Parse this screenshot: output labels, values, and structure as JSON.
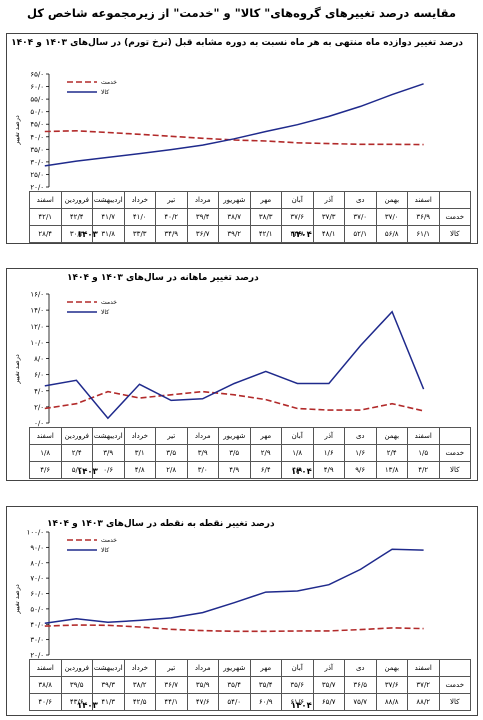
{
  "page_title": "مقایسه درصد تغییرهای گروه‌های\" کالا\" و \"خدمت\" از زیرمجموعه شاخص کل",
  "labels": {
    "khedmat": "خدمت",
    "kala": "کالا",
    "year_1403": "۱۴۰۳",
    "year_1404": "۱۴۰۴",
    "y_axis_title": "درصد تغییر"
  },
  "months": [
    "اسفند",
    "فروردین",
    "اردیبهشت",
    "خرداد",
    "تیر",
    "مرداد",
    "شهریور",
    "مهر",
    "آبان",
    "آذر",
    "دی",
    "بهمن",
    "اسفند"
  ],
  "colors": {
    "khedmat": "#b22a2a",
    "kala": "#1f2a8c"
  },
  "chart_data": [
    {
      "type": "line",
      "title": "درصد تغییر دوازده ماه منتهی به هر ماه نسبت به دوره مشابه قبل (نرخ تورم) در سال‌های ۱۴۰۳ و ۱۴۰۴",
      "ylabel": "درصد تغییر",
      "ylim": [
        20,
        65
      ],
      "yticks": [
        20,
        25,
        30,
        35,
        40,
        45,
        50,
        55,
        60,
        65
      ],
      "ytick_labels": [
        "۲۰/۰",
        "۲۵/۰",
        "۳۰/۰",
        "۳۵/۰",
        "۴۰/۰",
        "۴۵/۰",
        "۵۰/۰",
        "۵۵/۰",
        "۶۰/۰",
        "۶۵/۰"
      ],
      "x": [
        "اسفند",
        "فروردین",
        "اردیبهشت",
        "خرداد",
        "تیر",
        "مرداد",
        "شهریور",
        "مهر",
        "آبان",
        "آذر",
        "دی",
        "بهمن",
        "اسفند"
      ],
      "series": [
        {
          "name": "خدمت",
          "values": [
            42.1,
            42.4,
            41.7,
            41.0,
            40.2,
            39.4,
            38.7,
            38.3,
            37.6,
            37.3,
            37.0,
            37.0,
            36.9
          ],
          "labels": [
            "۴۲/۱",
            "۴۲/۴",
            "۴۱/۷",
            "۴۱/۰",
            "۴۰/۲",
            "۳۹/۴",
            "۳۸/۷",
            "۳۸/۳",
            "۳۷/۶",
            "۳۷/۳",
            "۳۷/۰",
            "۳۷/۰",
            "۳۶/۹"
          ]
        },
        {
          "name": "کالا",
          "values": [
            28.4,
            30.3,
            31.8,
            33.3,
            34.9,
            36.7,
            39.2,
            42.1,
            44.8,
            48.1,
            52.1,
            56.8,
            61.1
          ],
          "labels": [
            "۲۸/۴",
            "۳۰/۳",
            "۳۱/۸",
            "۳۳/۳",
            "۳۴/۹",
            "۳۶/۷",
            "۳۹/۲",
            "۴۲/۱",
            "۴۴/۸",
            "۴۸/۱",
            "۵۲/۱",
            "۵۶/۸",
            "۶۱/۱"
          ]
        }
      ]
    },
    {
      "type": "line",
      "title": "درصد تغییر ماهانه در سال‌های ۱۴۰۳ و ۱۴۰۴",
      "ylabel": "درصد تغییر",
      "ylim": [
        0,
        16
      ],
      "yticks": [
        0,
        2,
        4,
        6,
        8,
        10,
        12,
        14,
        16
      ],
      "ytick_labels": [
        "۰/۰",
        "۲/۰",
        "۴/۰",
        "۶/۰",
        "۸/۰",
        "۱۰/۰",
        "۱۲/۰",
        "۱۴/۰",
        "۱۶/۰"
      ],
      "x": [
        "اسفند",
        "فروردین",
        "اردیبهشت",
        "خرداد",
        "تیر",
        "مرداد",
        "شهریور",
        "مهر",
        "آبان",
        "آذر",
        "دی",
        "بهمن",
        "اسفند"
      ],
      "series": [
        {
          "name": "خدمت",
          "values": [
            1.8,
            2.4,
            3.9,
            3.1,
            3.5,
            3.9,
            3.5,
            2.9,
            1.8,
            1.6,
            1.6,
            2.4,
            1.5
          ],
          "labels": [
            "۱/۸",
            "۲/۴",
            "۳/۹",
            "۳/۱",
            "۳/۵",
            "۳/۹",
            "۳/۵",
            "۲/۹",
            "۱/۸",
            "۱/۶",
            "۱/۶",
            "۲/۴",
            "۱/۵"
          ]
        },
        {
          "name": "کالا",
          "values": [
            4.6,
            5.3,
            0.6,
            4.8,
            2.8,
            3.0,
            4.9,
            6.4,
            4.9,
            4.9,
            9.6,
            13.8,
            4.2
          ],
          "labels": [
            "۴/۶",
            "۵/۳",
            "۰/۶",
            "۴/۸",
            "۲/۸",
            "۳/۰",
            "۴/۹",
            "۶/۴",
            "۴/۹",
            "۴/۹",
            "۹/۶",
            "۱۳/۸",
            "۴/۲"
          ]
        }
      ]
    },
    {
      "type": "line",
      "title": "درصد تغییر نقطه به نقطه در سال‌های ۱۴۰۳ و ۱۴۰۴",
      "ylabel": "درصد تغییر",
      "ylim": [
        20,
        100
      ],
      "yticks": [
        20,
        30,
        40,
        50,
        60,
        70,
        80,
        90,
        100
      ],
      "ytick_labels": [
        "۲۰/۰",
        "۳۰/۰",
        "۴۰/۰",
        "۵۰/۰",
        "۶۰/۰",
        "۷۰/۰",
        "۸۰/۰",
        "۹۰/۰",
        "۱۰۰/۰"
      ],
      "x": [
        "اسفند",
        "فروردین",
        "اردیبهشت",
        "خرداد",
        "تیر",
        "مرداد",
        "شهریور",
        "مهر",
        "آبان",
        "آذر",
        "دی",
        "بهمن",
        "اسفند"
      ],
      "series": [
        {
          "name": "خدمت",
          "values": [
            38.8,
            39.5,
            39.3,
            38.2,
            36.7,
            35.9,
            35.4,
            35.4,
            35.6,
            35.7,
            36.5,
            37.6,
            37.2
          ],
          "labels": [
            "۳۸/۸",
            "۳۹/۵",
            "۳۹/۳",
            "۳۸/۲",
            "۳۶/۷",
            "۳۵/۹",
            "۳۵/۴",
            "۳۵/۴",
            "۳۵/۶",
            "۳۵/۷",
            "۳۶/۵",
            "۳۷/۶",
            "۳۷/۲"
          ]
        },
        {
          "name": "کالا",
          "values": [
            40.6,
            43.6,
            41.3,
            42.5,
            44.1,
            47.6,
            54.0,
            60.9,
            61.6,
            65.7,
            75.7,
            88.8,
            88.2
          ],
          "labels": [
            "۴۰/۶",
            "۴۳/۶",
            "۴۱/۳",
            "۴۲/۵",
            "۴۴/۱",
            "۴۷/۶",
            "۵۴/۰",
            "۶۰/۹",
            "۶۱/۶",
            "۶۵/۷",
            "۷۵/۷",
            "۸۸/۸",
            "۸۸/۲"
          ]
        }
      ]
    }
  ]
}
